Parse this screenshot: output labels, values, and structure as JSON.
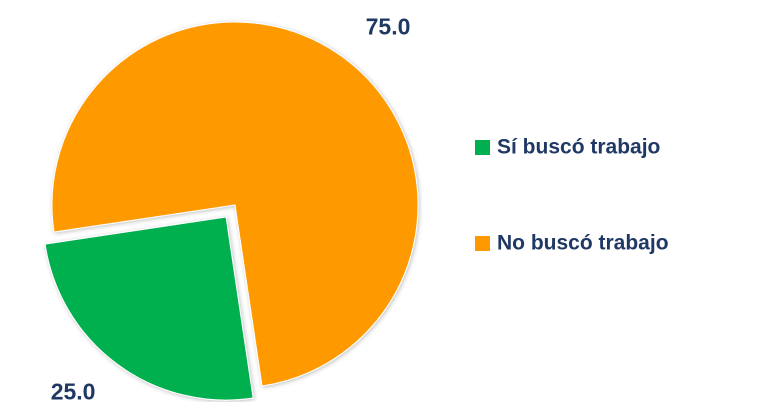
{
  "chart_data": {
    "type": "pie",
    "categories": [
      "Sí buscó trabajo",
      "No buscó trabajo"
    ],
    "values": [
      25,
      75
    ],
    "value_labels": [
      "25.0",
      "75.0"
    ],
    "colors": [
      "#00b050",
      "#ff9900"
    ]
  }
}
